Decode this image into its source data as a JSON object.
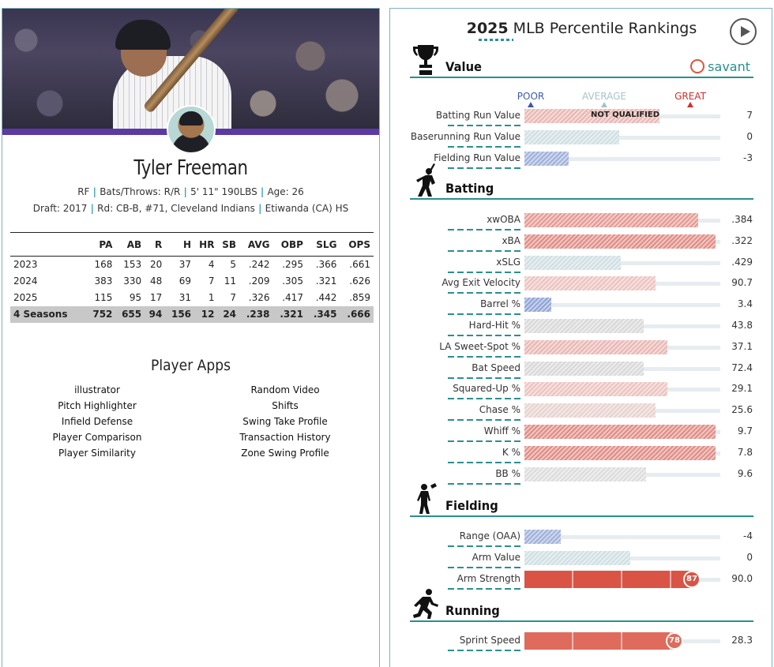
{
  "player": {
    "name": "Tyler Freeman",
    "bio1": [
      "RF",
      "Bats/Throws: R/R",
      "5' 11\" 190LBS",
      "Age: 26"
    ],
    "bio2": [
      "Draft: 2017",
      "Rd: CB-B, #71, Cleveland Indians",
      "Etiwanda (CA) HS"
    ]
  },
  "stats": {
    "headers": [
      "",
      "PA",
      "AB",
      "R",
      "H",
      "HR",
      "SB",
      "AVG",
      "OBP",
      "SLG",
      "OPS"
    ],
    "rows": [
      [
        "2023",
        "168",
        "153",
        "20",
        "37",
        "4",
        "5",
        ".242",
        ".295",
        ".366",
        ".661"
      ],
      [
        "2024",
        "383",
        "330",
        "48",
        "69",
        "7",
        "11",
        ".209",
        ".305",
        ".321",
        ".626"
      ],
      [
        "2025",
        "115",
        "95",
        "17",
        "31",
        "1",
        "7",
        ".326",
        ".417",
        ".442",
        ".859"
      ]
    ],
    "total": [
      "4 Seasons",
      "752",
      "655",
      "94",
      "156",
      "12",
      "24",
      ".238",
      ".321",
      ".345",
      ".666"
    ]
  },
  "apps": {
    "title": "Player Apps",
    "left": [
      "illustrator",
      "Pitch Highlighter",
      "Infield Defense",
      "Player Comparison",
      "Player Similarity"
    ],
    "right": [
      "Random Video",
      "Shifts",
      "Swing Take Profile",
      "Transaction History",
      "Zone Swing Profile"
    ]
  },
  "rankings": {
    "title_year": "2025",
    "title_rest": "MLB Percentile Rankings",
    "savant": "savant",
    "legend": {
      "poor": "POOR",
      "average": "AVERAGE",
      "great": "GREAT"
    },
    "colors": {
      "poor": "#3b5ba9",
      "average": "#a7c3c8",
      "great": "#d0312d",
      "accent": "#2a8f8f"
    },
    "sections": [
      {
        "name": "Value",
        "icon": "trophy-icon",
        "metrics": [
          {
            "label": "Batting Run Value",
            "value": "7",
            "pct": 70,
            "style": "hatch",
            "color": "#e9b7b3",
            "note": "NOT QUALIFIED"
          },
          {
            "label": "Baserunning Run Value",
            "value": "0",
            "pct": 49,
            "style": "hatch",
            "color": "#cfdfe3"
          },
          {
            "label": "Fielding Run Value",
            "value": "-3",
            "pct": 23,
            "style": "hatch",
            "color": "#9fb0da"
          }
        ]
      },
      {
        "name": "Batting",
        "icon": "batter-icon",
        "metrics": [
          {
            "label": "xwOBA",
            "value": ".384",
            "pct": 90,
            "style": "hatch",
            "color": "#e59a93"
          },
          {
            "label": "xBA",
            "value": ".322",
            "pct": 99,
            "style": "hatch",
            "color": "#e08d85"
          },
          {
            "label": "xSLG",
            "value": ".429",
            "pct": 50,
            "style": "hatch",
            "color": "#cfdfe3"
          },
          {
            "label": "Avg Exit Velocity",
            "value": "90.7",
            "pct": 68,
            "style": "hatch",
            "color": "#ecc3bf"
          },
          {
            "label": "Barrel %",
            "value": "3.4",
            "pct": 14,
            "style": "hatch",
            "color": "#8fa3d6"
          },
          {
            "label": "Hard-Hit %",
            "value": "43.8",
            "pct": 62,
            "style": "hatch",
            "color": "#d8d8d8"
          },
          {
            "label": "LA Sweet-Spot %",
            "value": "37.1",
            "pct": 74,
            "style": "hatch",
            "color": "#e9b7b3"
          },
          {
            "label": "Bat Speed",
            "value": "72.4",
            "pct": 62,
            "style": "hatch",
            "color": "#d8d8d8"
          },
          {
            "label": "Squared-Up %",
            "value": "29.1",
            "pct": 74,
            "style": "hatch",
            "color": "#ecc3bf"
          },
          {
            "label": "Chase %",
            "value": "25.6",
            "pct": 68,
            "style": "hatch",
            "color": "#e7d2cf"
          },
          {
            "label": "Whiff %",
            "value": "9.7",
            "pct": 99,
            "style": "hatch",
            "color": "#e08d85"
          },
          {
            "label": "K %",
            "value": "7.8",
            "pct": 99,
            "style": "hatch",
            "color": "#e08d85"
          },
          {
            "label": "BB %",
            "value": "9.6",
            "pct": 63,
            "style": "hatch",
            "color": "#dcdcdc"
          }
        ]
      },
      {
        "name": "Fielding",
        "icon": "fielder-icon",
        "metrics": [
          {
            "label": "Range (OAA)",
            "value": "-4",
            "pct": 19,
            "style": "hatch",
            "color": "#9fb0da"
          },
          {
            "label": "Arm Value",
            "value": "0",
            "pct": 55,
            "style": "hatch",
            "color": "#cfdfe3"
          },
          {
            "label": "Arm Strength",
            "value": "90.0",
            "pct": 87,
            "style": "solid",
            "color": "#d95445",
            "badge": "87"
          }
        ]
      },
      {
        "name": "Running",
        "icon": "runner-icon",
        "metrics": [
          {
            "label": "Sprint Speed",
            "value": "28.3",
            "pct": 78,
            "style": "solid",
            "color": "#de6b5c",
            "badge": "78"
          }
        ]
      }
    ]
  }
}
